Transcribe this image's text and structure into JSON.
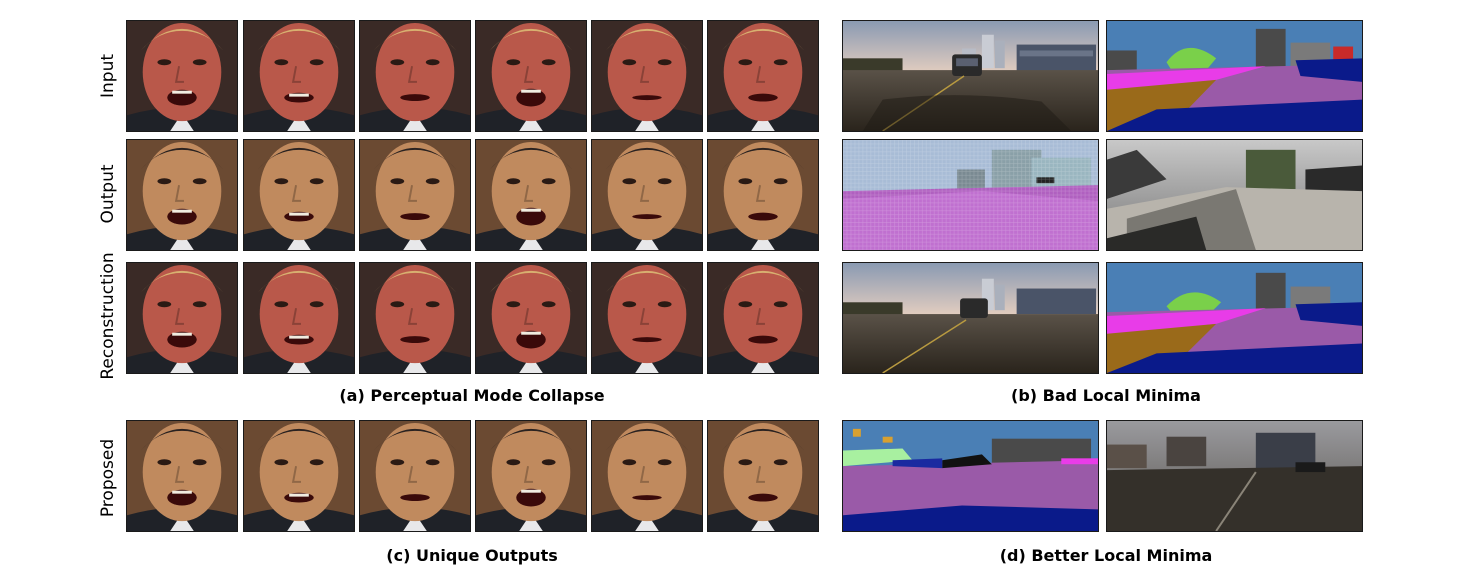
{
  "row_labels": {
    "input": "Input",
    "output": "Output",
    "reconstruction": "Reconstruction",
    "proposed": "Proposed"
  },
  "captions": {
    "a": "(a) Perceptual Mode Collapse",
    "b": "(b) Bad Local Minima",
    "c": "(c) Unique Outputs",
    "d": "(d) Better Local Minima"
  },
  "colors": {
    "trump_skin": "#b9584a",
    "obama_skin": "#c08a5e",
    "background_brown": "#6b4a32",
    "suit_dark": "#1f2228",
    "seg_sky": "#4a7fb5",
    "seg_road": "#9a5aa8",
    "seg_sidewalk": "#e83ce8",
    "seg_terrain": "#9a6a1a",
    "seg_car": "#0a1a8a",
    "seg_vegetation": "#7ad04a",
    "seg_building": "#4a4a4a"
  }
}
